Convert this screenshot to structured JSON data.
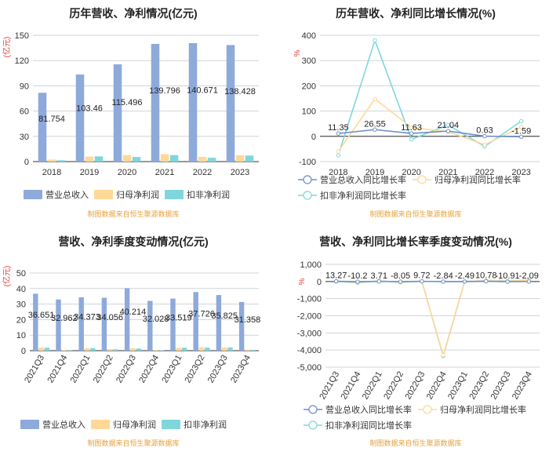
{
  "colors": {
    "revenue": "#8eaadb",
    "net_profit": "#ffd898",
    "deducted_profit": "#7fd7dd",
    "source": "#e6a23c",
    "axis_unit": "#e0403a",
    "grid": "#cfd3da",
    "axis": "#333333"
  },
  "chart_data": [
    {
      "type": "bar",
      "title": "历年营收、净利情况(亿元)",
      "ylabel": "(亿元)",
      "ylim": [
        0,
        150
      ],
      "yticks": [
        "0",
        "30",
        "60",
        "90",
        "120",
        "150"
      ],
      "categories": [
        "2018",
        "2019",
        "2020",
        "2021",
        "2022",
        "2023"
      ],
      "series": [
        {
          "name": "营业总收入",
          "values": [
            81.754,
            103.46,
            115.496,
            139.796,
            140.671,
            138.428
          ]
        },
        {
          "name": "归母净利润",
          "values": [
            2.4,
            5.9,
            7.7,
            8.9,
            5.6,
            7.6
          ]
        },
        {
          "name": "扣非净利润",
          "values": [
            1.6,
            6.2,
            5.5,
            7.8,
            4.6,
            7.2
          ]
        }
      ],
      "data_labels": [
        "81.754",
        "103.46",
        "115.496",
        "139.796",
        "140.671",
        "138.428"
      ],
      "source": "制图数据来自恒生聚源数据库"
    },
    {
      "type": "line",
      "title": "历年营收、净利同比增长情况(%)",
      "ylabel": "%",
      "ylim": [
        -100,
        400
      ],
      "yticks": [
        "-100",
        "0",
        "100",
        "200",
        "300",
        "400"
      ],
      "categories": [
        "2018",
        "2019",
        "2020",
        "2021",
        "2022",
        "2023"
      ],
      "series": [
        {
          "name": "营业总收入同比增长率",
          "values": [
            11.35,
            26.55,
            11.63,
            21.04,
            0.63,
            -1.59
          ]
        },
        {
          "name": "归母净利润同比增长率",
          "values": [
            -60,
            148,
            35,
            18,
            -33,
            37
          ]
        },
        {
          "name": "扣非净利润同比增长率",
          "values": [
            -75,
            380,
            -12,
            45,
            -40,
            60
          ]
        }
      ],
      "data_labels": [
        "11.35",
        "26.55",
        "11.63",
        "21.04",
        "0.63",
        "-1.59"
      ],
      "source": "制图数据来自恒生聚源数据库"
    },
    {
      "type": "bar",
      "title": "营收、净利季度变动情况(亿元)",
      "ylabel": "(亿元)",
      "ylim": [
        0,
        50
      ],
      "yticks": [
        "0",
        "10",
        "20",
        "30",
        "40",
        "50"
      ],
      "categories": [
        "2021Q3",
        "2021Q4",
        "2022Q1",
        "2022Q2",
        "2022Q3",
        "2022Q4",
        "2023Q1",
        "2023Q2",
        "2023Q3",
        "2023Q4"
      ],
      "series": [
        {
          "name": "营业总收入",
          "values": [
            36.651,
            32.962,
            34.373,
            34.056,
            40.214,
            32.028,
            33.519,
            37.726,
            35.825,
            31.358
          ]
        },
        {
          "name": "归母净利润",
          "values": [
            2.0,
            0.3,
            1.5,
            1.0,
            1.6,
            0.4,
            1.8,
            2.2,
            2.0,
            0.6
          ]
        },
        {
          "name": "扣非净利润",
          "values": [
            1.9,
            0.2,
            1.6,
            0.9,
            1.4,
            0.3,
            1.9,
            2.0,
            2.1,
            0.5
          ]
        }
      ],
      "data_labels": [
        "36.651",
        "32.962",
        "34.373",
        "34.056",
        "40.214",
        "32.028",
        "33.519",
        "37.726",
        "35.825",
        "31.358"
      ],
      "source": "制图数据来自恒生聚源数据库"
    },
    {
      "type": "line",
      "title": "营收、净利同比增长率季度变动情况(%)",
      "ylabel": "%",
      "ylim": [
        -5000,
        1000
      ],
      "yticks": [
        "-5,000",
        "-4,000",
        "-3,000",
        "-2,000",
        "-1,000",
        "0",
        "1,000"
      ],
      "categories": [
        "2021Q3",
        "2021Q4",
        "2022Q1",
        "2022Q2",
        "2022Q3",
        "2022Q4",
        "2023Q1",
        "2023Q2",
        "2023Q3",
        "2023Q4"
      ],
      "series": [
        {
          "name": "营业总收入同比增长率",
          "values": [
            13.27,
            -10.2,
            3.71,
            -8.05,
            9.72,
            -2.84,
            -2.49,
            10.78,
            -10.91,
            -2.09
          ]
        },
        {
          "name": "归母净利润同比增长率",
          "values": [
            20,
            -60,
            30,
            -40,
            15,
            -4300,
            10,
            40,
            25,
            60
          ]
        },
        {
          "name": "扣非净利润同比增长率",
          "values": [
            10,
            -80,
            40,
            -50,
            20,
            -4350,
            5,
            50,
            30,
            80
          ]
        }
      ],
      "data_labels": [
        "13.27",
        "-10.2",
        "3.71",
        "-8.05",
        "9.72",
        "-2.84",
        "-2.49",
        "10.78",
        "-10.91",
        "-2.09"
      ],
      "source": "制图数据来自恒生聚源数据库"
    }
  ]
}
